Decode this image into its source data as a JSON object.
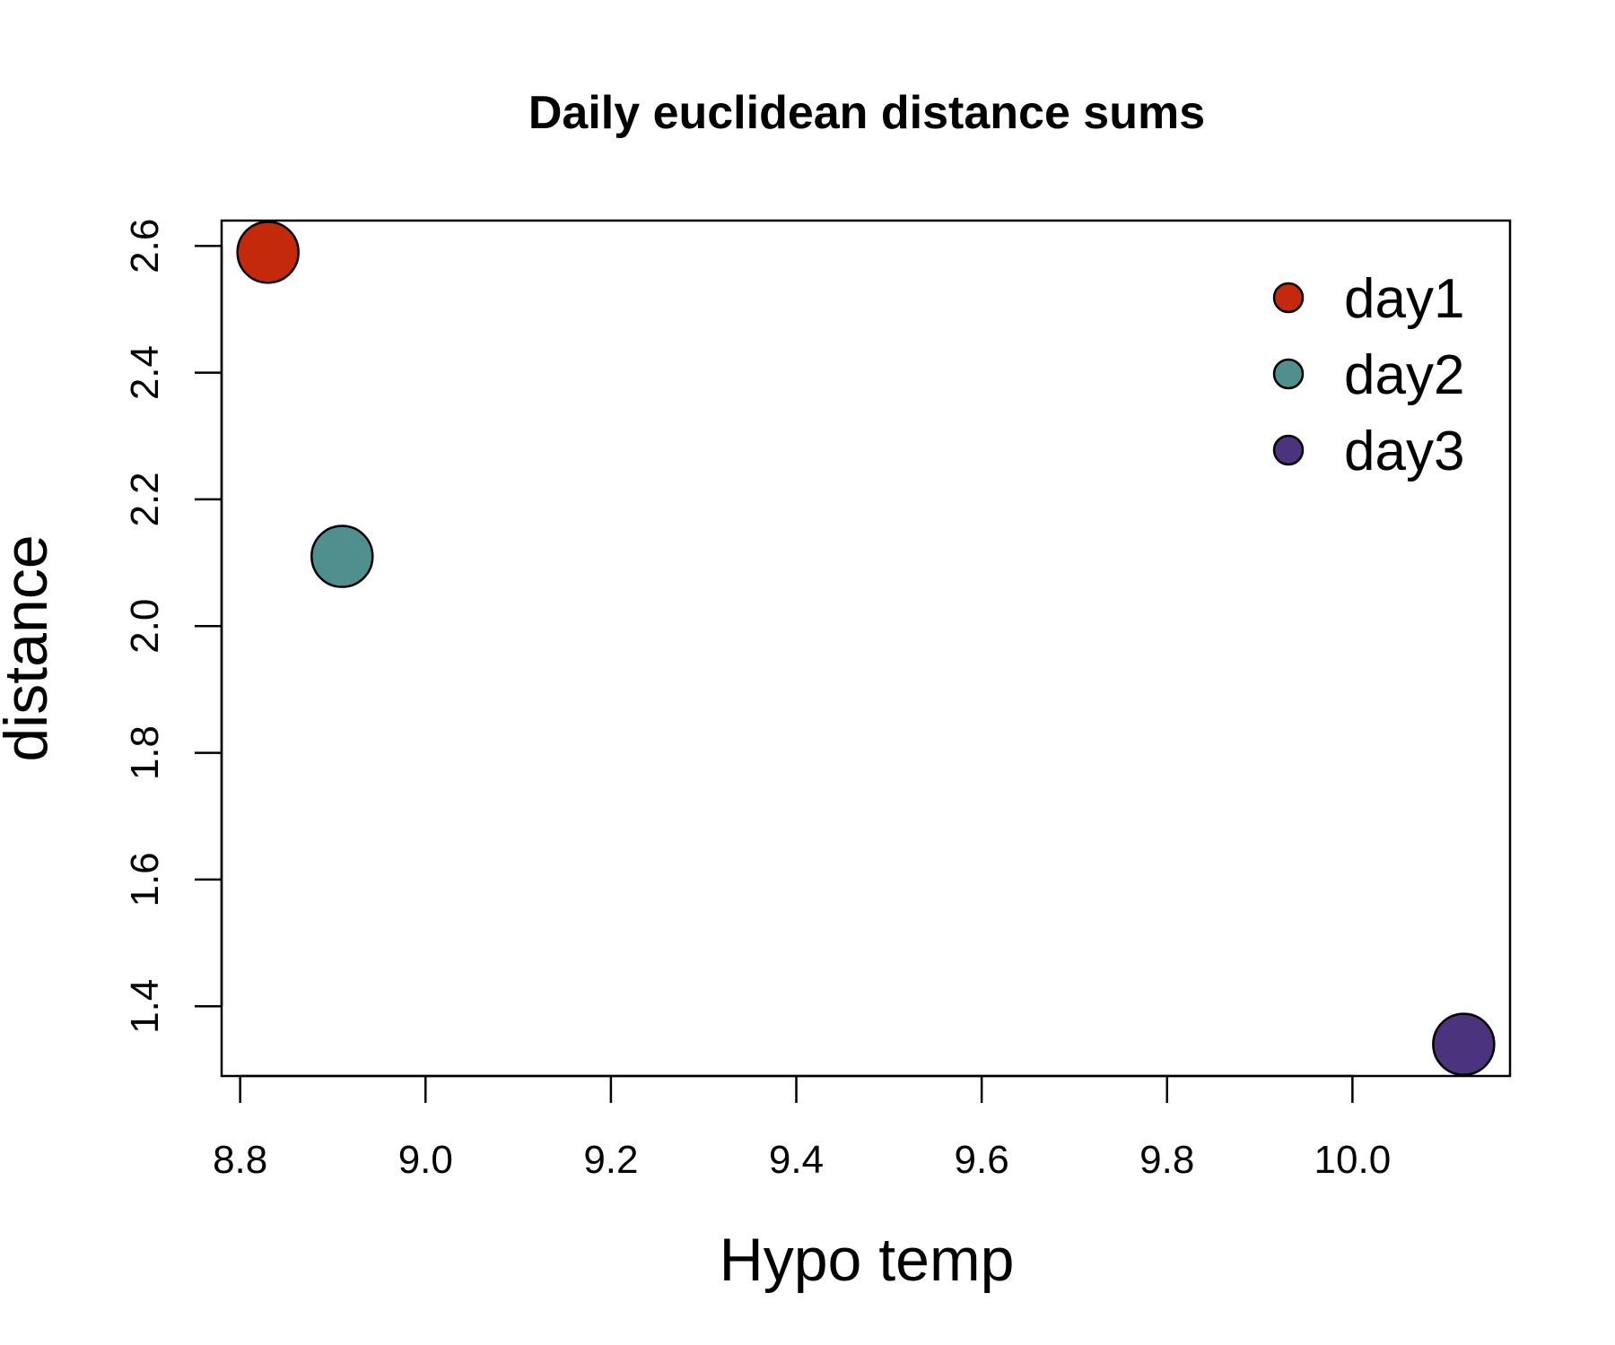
{
  "chart_data": {
    "type": "scatter",
    "title": "Daily euclidean distance sums",
    "xlabel": "Hypo temp",
    "ylabel": "distance",
    "xlim": [
      8.78,
      10.17
    ],
    "ylim": [
      1.29,
      2.64
    ],
    "xticks": [
      8.8,
      9.0,
      9.2,
      9.4,
      9.6,
      9.8,
      10.0
    ],
    "xtick_labels": [
      "8.8",
      "9.0",
      "9.2",
      "9.4",
      "9.6",
      "9.8",
      "10.0"
    ],
    "yticks": [
      1.4,
      1.6,
      1.8,
      2.0,
      2.2,
      2.4,
      2.6
    ],
    "ytick_labels": [
      "1.4",
      "1.6",
      "1.8",
      "2.0",
      "2.2",
      "2.4",
      "2.6"
    ],
    "grid": false,
    "legend_position": "top-right",
    "series": [
      {
        "name": "day1",
        "color": "#c4290c",
        "x": [
          8.83
        ],
        "y": [
          2.59
        ]
      },
      {
        "name": "day2",
        "color": "#4f8f8e",
        "x": [
          8.91
        ],
        "y": [
          2.11
        ]
      },
      {
        "name": "day3",
        "color": "#4b337d",
        "x": [
          10.12
        ],
        "y": [
          1.34
        ]
      }
    ]
  }
}
